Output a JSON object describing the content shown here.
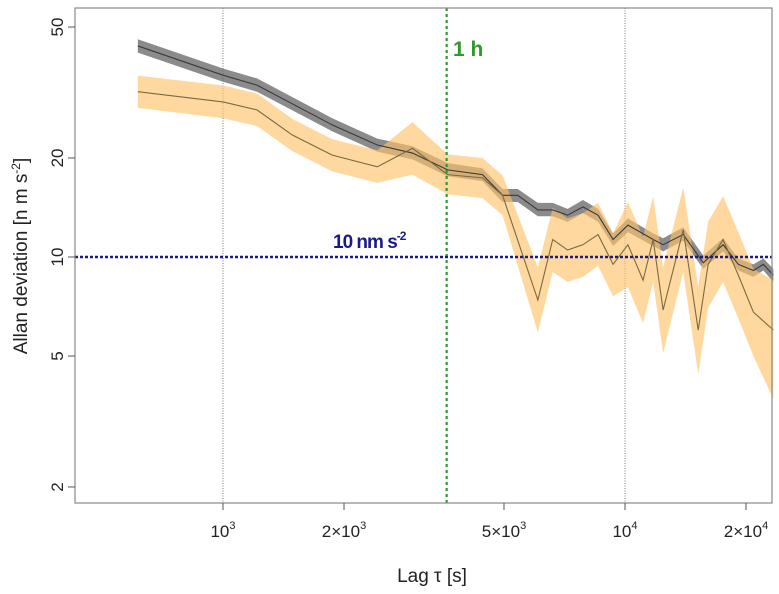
{
  "chart_data": {
    "type": "line",
    "title": "",
    "xlabel": "Lag τ [s]",
    "ylabel": "Allan deviation [n m s-2]",
    "ylabel_parts": {
      "main": "Allan deviation [n m s",
      "sup": "-2",
      "end": "]"
    },
    "xscale": "log",
    "yscale": "log",
    "xlim": [
      432,
      23400
    ],
    "ylim": [
      1.79,
      57
    ],
    "xticks": [
      {
        "value": 1000,
        "base": "10",
        "sup": "3"
      },
      {
        "value": 2000,
        "base": "2×10",
        "sup": "3"
      },
      {
        "value": 5000,
        "base": "5×10",
        "sup": "3"
      },
      {
        "value": 10000,
        "base": "10",
        "sup": "4"
      },
      {
        "value": 20000,
        "base": "2×10",
        "sup": "4"
      }
    ],
    "yticks": [
      {
        "value": 2,
        "label": "2"
      },
      {
        "value": 5,
        "label": "5"
      },
      {
        "value": 10,
        "label": "10"
      },
      {
        "value": 20,
        "label": "20"
      },
      {
        "value": 50,
        "label": "50"
      }
    ],
    "grid_x": [
      1000,
      10000
    ],
    "series": [
      {
        "name": "gray",
        "line_color": "#3a3a3a",
        "band_color": "#6e6e6e",
        "points": [
          [
            614,
            43.8,
            41.8,
            45.9
          ],
          [
            1000,
            35.7,
            34.1,
            37.4
          ],
          [
            1215,
            33.3,
            31.8,
            34.9
          ],
          [
            1870,
            25.2,
            24.1,
            26.4
          ],
          [
            2420,
            21.9,
            20.9,
            22.9
          ],
          [
            2960,
            20.7,
            19.8,
            21.7
          ],
          [
            3620,
            18.4,
            17.6,
            19.3
          ],
          [
            4420,
            17.8,
            17.0,
            18.6
          ],
          [
            4960,
            15.4,
            14.7,
            16.1
          ],
          [
            5410,
            15.4,
            14.7,
            16.1
          ],
          [
            6070,
            13.9,
            13.3,
            14.6
          ],
          [
            6610,
            13.9,
            13.3,
            14.6
          ],
          [
            7200,
            13.4,
            12.8,
            14.0
          ],
          [
            7860,
            14.2,
            13.6,
            14.9
          ],
          [
            8570,
            13.4,
            12.8,
            14.0
          ],
          [
            9340,
            11.3,
            10.8,
            11.8
          ],
          [
            10170,
            12.5,
            11.9,
            13.1
          ],
          [
            11750,
            11.3,
            10.8,
            11.8
          ],
          [
            12440,
            10.9,
            10.4,
            11.4
          ],
          [
            13960,
            11.7,
            11.2,
            12.3
          ],
          [
            15660,
            9.6,
            9.2,
            10.1
          ],
          [
            17540,
            10.9,
            10.4,
            11.4
          ],
          [
            19140,
            9.5,
            9.1,
            9.9
          ],
          [
            20860,
            9.1,
            8.7,
            9.5
          ],
          [
            22090,
            9.5,
            9.1,
            9.9
          ],
          [
            23390,
            8.8,
            8.4,
            9.2
          ]
        ]
      },
      {
        "name": "orange",
        "line_color": "#7a6a40",
        "band_color": "#fdc36a",
        "points": [
          [
            614,
            31.8,
            28.4,
            35.6
          ],
          [
            1000,
            29.6,
            26.4,
            33.2
          ],
          [
            1215,
            28.0,
            25.0,
            31.4
          ],
          [
            1486,
            23.5,
            21.0,
            26.3
          ],
          [
            1870,
            20.4,
            18.2,
            22.8
          ],
          [
            2420,
            18.8,
            16.8,
            21.1
          ],
          [
            2960,
            21.4,
            17.8,
            25.7
          ],
          [
            3620,
            17.8,
            15.5,
            20.5
          ],
          [
            4420,
            17.4,
            15.1,
            20.0
          ],
          [
            4960,
            15.4,
            13.4,
            17.7
          ],
          [
            6070,
            7.4,
            5.9,
            9.3
          ],
          [
            6610,
            11.3,
            9.0,
            14.1
          ],
          [
            7200,
            10.5,
            8.4,
            13.1
          ],
          [
            7860,
            10.9,
            8.7,
            13.6
          ],
          [
            8570,
            11.7,
            9.4,
            14.6
          ],
          [
            9340,
            9.5,
            7.6,
            11.8
          ],
          [
            10170,
            10.9,
            8.1,
            14.7
          ],
          [
            11090,
            8.5,
            6.3,
            11.5
          ],
          [
            11750,
            11.3,
            8.4,
            15.3
          ],
          [
            12440,
            6.9,
            5.1,
            9.3
          ],
          [
            13960,
            12.1,
            9.0,
            16.3
          ],
          [
            15210,
            6.0,
            4.4,
            8.1
          ],
          [
            16100,
            9.5,
            7.0,
            12.8
          ],
          [
            17540,
            11.3,
            8.4,
            15.3
          ],
          [
            19140,
            8.8,
            6.5,
            11.9
          ],
          [
            20860,
            6.8,
            5.0,
            9.2
          ],
          [
            23390,
            6.0,
            3.7,
            8.5
          ]
        ]
      }
    ],
    "annotations": [
      {
        "type": "vline",
        "x": 3600,
        "label": "1 h",
        "color": "#2e9a2e"
      },
      {
        "type": "hline",
        "y": 10,
        "label_main": "10 nm s",
        "label_sup": "-2",
        "color": "#1a1a8c"
      }
    ],
    "legend": "none"
  }
}
